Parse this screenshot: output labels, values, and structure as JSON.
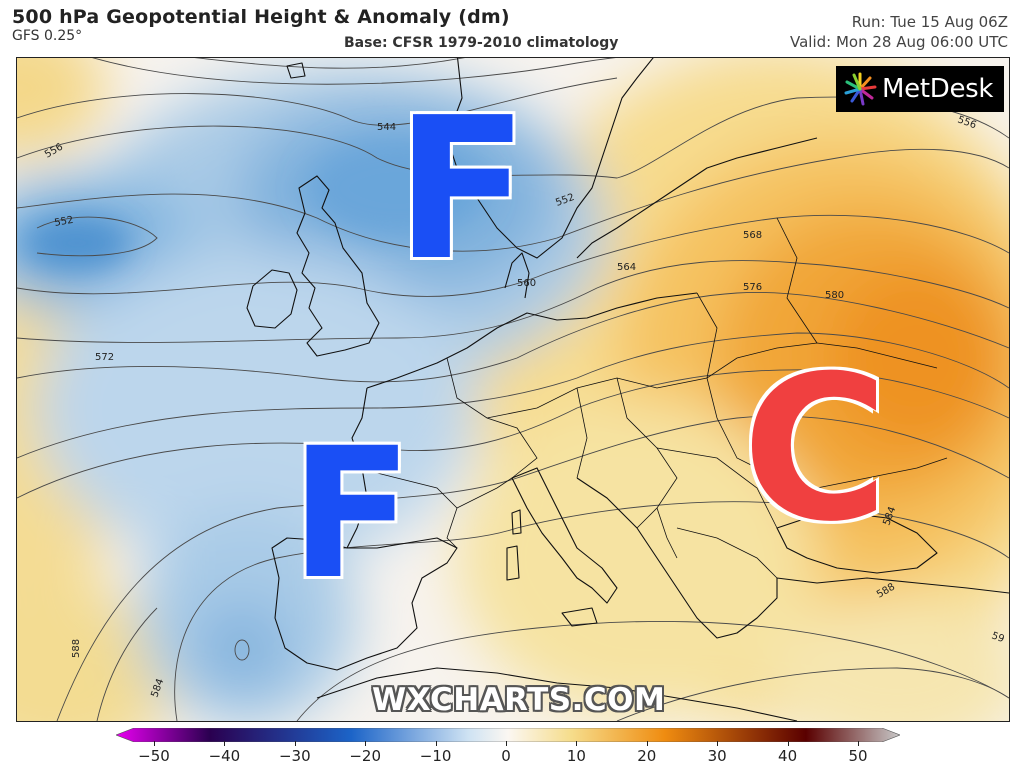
{
  "header": {
    "title": "500 hPa Geopotential Height & Anomaly (dm)",
    "model": "GFS 0.25°",
    "base": "Base: CFSR 1979-2010 climatology",
    "run": "Run: Tue 15 Aug 06Z",
    "valid": "Valid: Mon 28 Aug 06:00 UTC"
  },
  "logo": {
    "text": "MetDesk"
  },
  "watermark": "WXCHARTS.COM",
  "markers": [
    {
      "letter": "F",
      "color": "#1a4ff5"
    },
    {
      "letter": "F",
      "color": "#1a4ff5"
    },
    {
      "letter": "C",
      "color": "#f04040"
    }
  ],
  "contour_labels": [
    "544",
    "552",
    "556",
    "552",
    "560",
    "564",
    "568",
    "572",
    "576",
    "580",
    "584",
    "588",
    "588",
    "584",
    "556",
    "59"
  ],
  "colorbar": {
    "ticks": [
      "−50",
      "−40",
      "−30",
      "−20",
      "−10",
      "0",
      "10",
      "20",
      "30",
      "40",
      "50"
    ],
    "colors": {
      "min": "#e800f0",
      "neg_deep": "#2a0050",
      "neg_mid": "#1c64c8",
      "neg_light": "#cfe3f3",
      "zero": "#fbf7f2",
      "pos_light": "#f6dd8c",
      "pos_mid": "#ef8c10",
      "pos_deep": "#5a0000",
      "max": "#c8c8c8"
    }
  }
}
